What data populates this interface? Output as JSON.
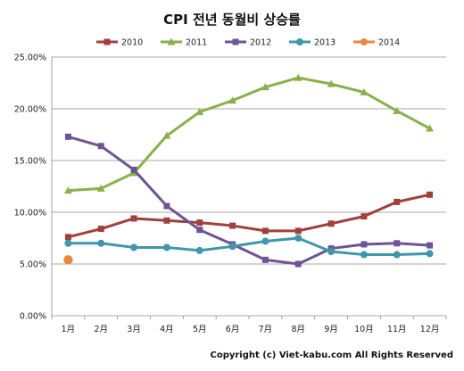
{
  "chart_data": {
    "type": "line",
    "title": "CPI 전년 동월비 상승률",
    "categories": [
      "1月",
      "2月",
      "3月",
      "4月",
      "5月",
      "6月",
      "7月",
      "8月",
      "9月",
      "10月",
      "11月",
      "12月"
    ],
    "ylim": [
      0,
      25
    ],
    "yticks": [
      "0.00%",
      "5.00%",
      "10.00%",
      "15.00%",
      "20.00%",
      "25.00%"
    ],
    "ytick_values": [
      0,
      5,
      10,
      15,
      20,
      25
    ],
    "grid": true,
    "legend_position": "top",
    "series": [
      {
        "name": "2010",
        "color": "#a0403c",
        "marker": "square",
        "values": [
          7.6,
          8.4,
          9.4,
          9.2,
          9.0,
          8.7,
          8.2,
          8.2,
          8.9,
          9.6,
          11.0,
          11.7
        ]
      },
      {
        "name": "2011",
        "color": "#8ab04a",
        "marker": "triangle",
        "values": [
          12.1,
          12.3,
          13.8,
          17.4,
          19.7,
          20.8,
          22.1,
          23.0,
          22.4,
          21.6,
          19.8,
          18.1
        ]
      },
      {
        "name": "2012",
        "color": "#6e5494",
        "marker": "square",
        "values": [
          17.3,
          16.4,
          14.1,
          10.6,
          8.3,
          6.9,
          5.4,
          5.0,
          6.5,
          6.9,
          7.0,
          6.8
        ]
      },
      {
        "name": "2013",
        "color": "#3f97ac",
        "marker": "circle",
        "values": [
          7.0,
          7.0,
          6.6,
          6.6,
          6.3,
          6.7,
          7.2,
          7.5,
          6.2,
          5.9,
          5.9,
          6.0
        ]
      },
      {
        "name": "2014",
        "color": "#e88a3c",
        "marker": "circle",
        "values": [
          5.4,
          null,
          null,
          null,
          null,
          null,
          null,
          null,
          null,
          null,
          null,
          null
        ]
      }
    ]
  },
  "copyright": "Copyright (c) Viet-kabu.com All Rights Reserved"
}
